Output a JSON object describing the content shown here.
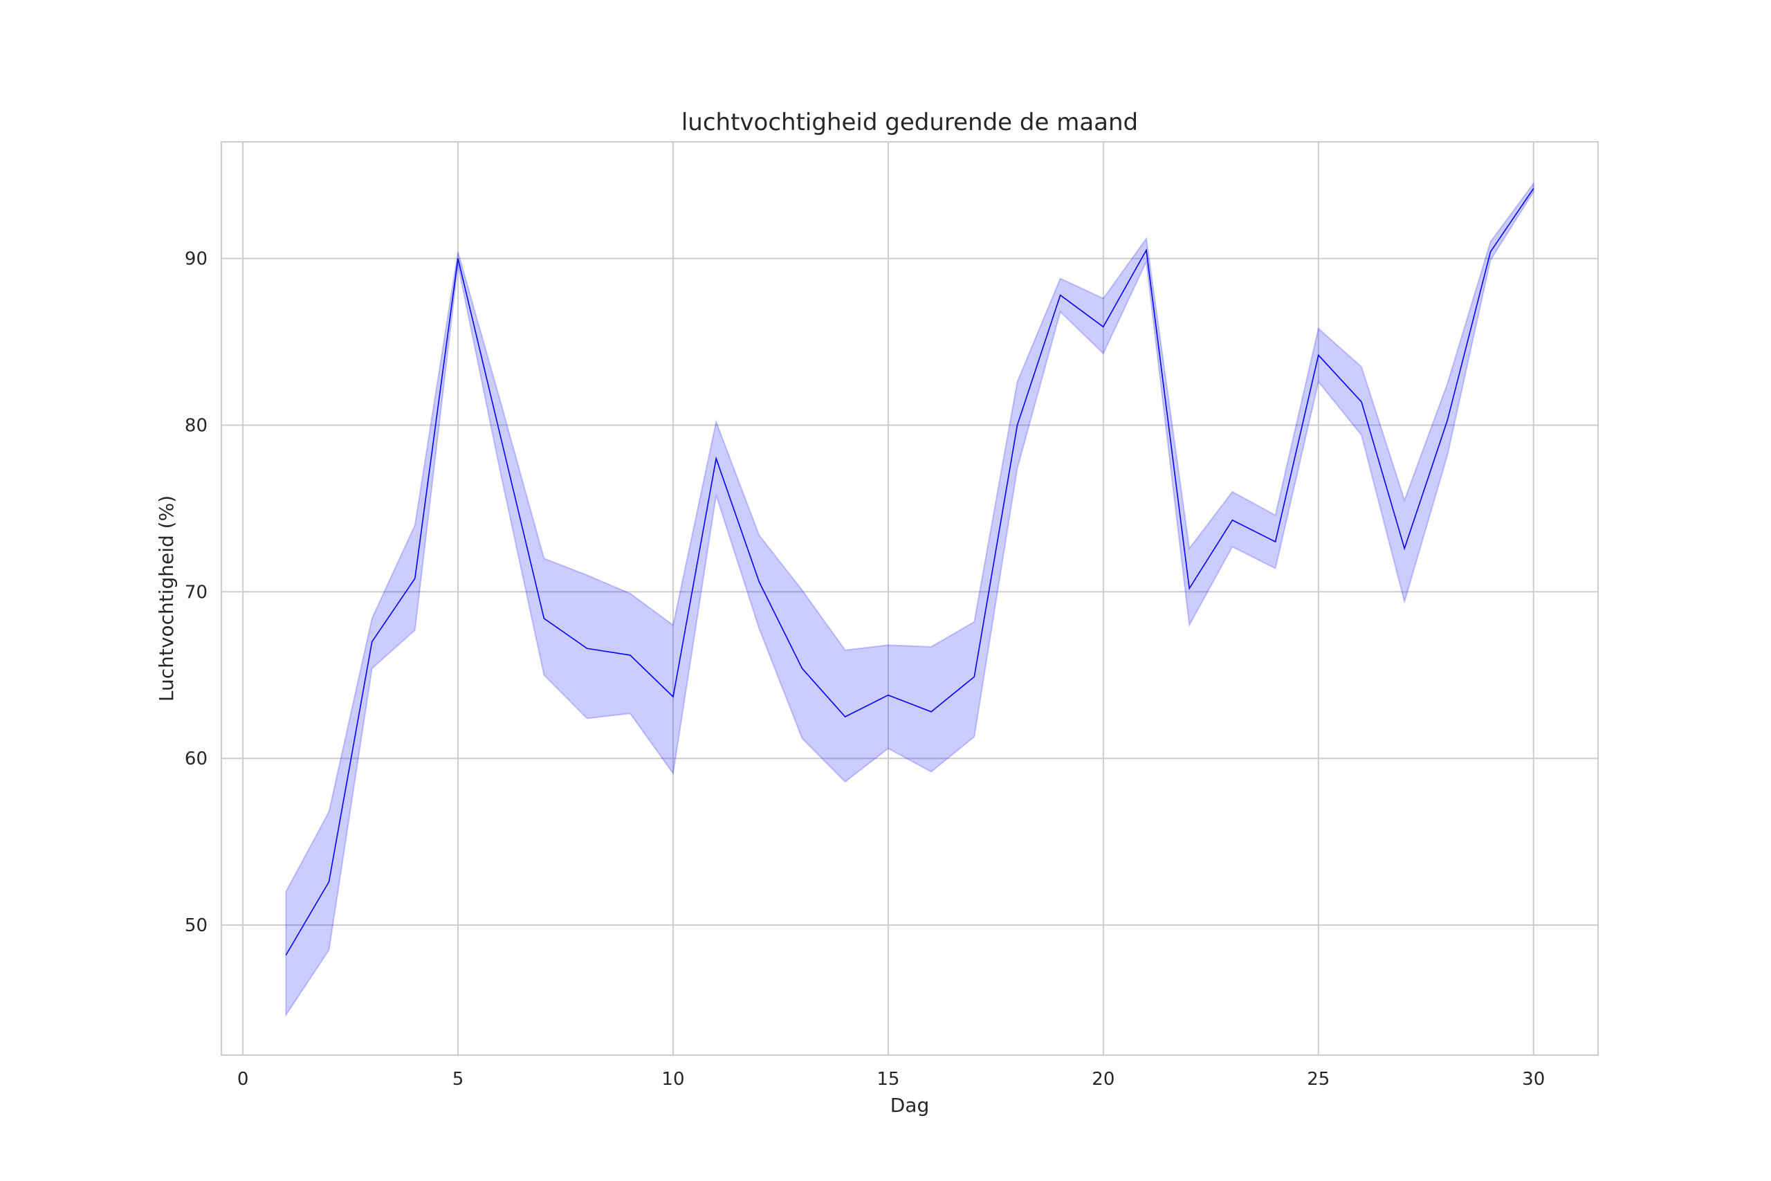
{
  "chart_data": {
    "type": "line",
    "title": "luchtvochtigheid gedurende de maand",
    "xlabel": "Dag",
    "ylabel": "Luchtvochtigheid (%)",
    "xlim": [
      -0.5,
      31.5
    ],
    "ylim": [
      42.2,
      97.0
    ],
    "xticks": [
      0,
      5,
      10,
      15,
      20,
      25,
      30
    ],
    "yticks": [
      50,
      60,
      70,
      80,
      90
    ],
    "grid": true,
    "line_color": "#0000ff",
    "band_color": "#0000ff",
    "grid_color": "#cccccc",
    "series": [
      {
        "x": [
          1,
          2,
          3,
          4,
          5,
          6,
          7,
          8,
          9,
          10,
          11,
          12,
          13,
          14,
          15,
          16,
          17,
          18,
          19,
          20,
          21,
          22,
          23,
          24,
          25,
          26,
          27,
          28,
          29,
          30
        ],
        "values": [
          48.2,
          52.6,
          67.0,
          70.8,
          90.0,
          79.2,
          68.4,
          66.6,
          66.2,
          63.7,
          78.0,
          70.6,
          65.4,
          62.5,
          63.8,
          62.8,
          64.9,
          80.0,
          87.8,
          85.9,
          90.5,
          70.2,
          74.3,
          73.0,
          84.2,
          81.4,
          72.6,
          80.3,
          90.4,
          94.2
        ],
        "lower": [
          44.6,
          48.5,
          65.4,
          67.7,
          89.6,
          77.0,
          65.0,
          62.4,
          62.7,
          59.1,
          75.8,
          67.8,
          61.2,
          58.6,
          60.6,
          59.2,
          61.3,
          77.4,
          86.8,
          84.3,
          89.8,
          68.0,
          72.7,
          71.4,
          82.6,
          79.4,
          69.4,
          78.2,
          89.9,
          94.0
        ],
        "upper": [
          52.0,
          56.8,
          68.4,
          74.0,
          90.4,
          81.3,
          72.0,
          71.0,
          69.9,
          68.0,
          80.2,
          73.4,
          70.1,
          66.5,
          66.8,
          66.7,
          68.2,
          82.6,
          88.8,
          87.6,
          91.2,
          72.6,
          76.0,
          74.6,
          85.8,
          83.5,
          75.5,
          82.5,
          91.0,
          94.5
        ]
      }
    ]
  }
}
